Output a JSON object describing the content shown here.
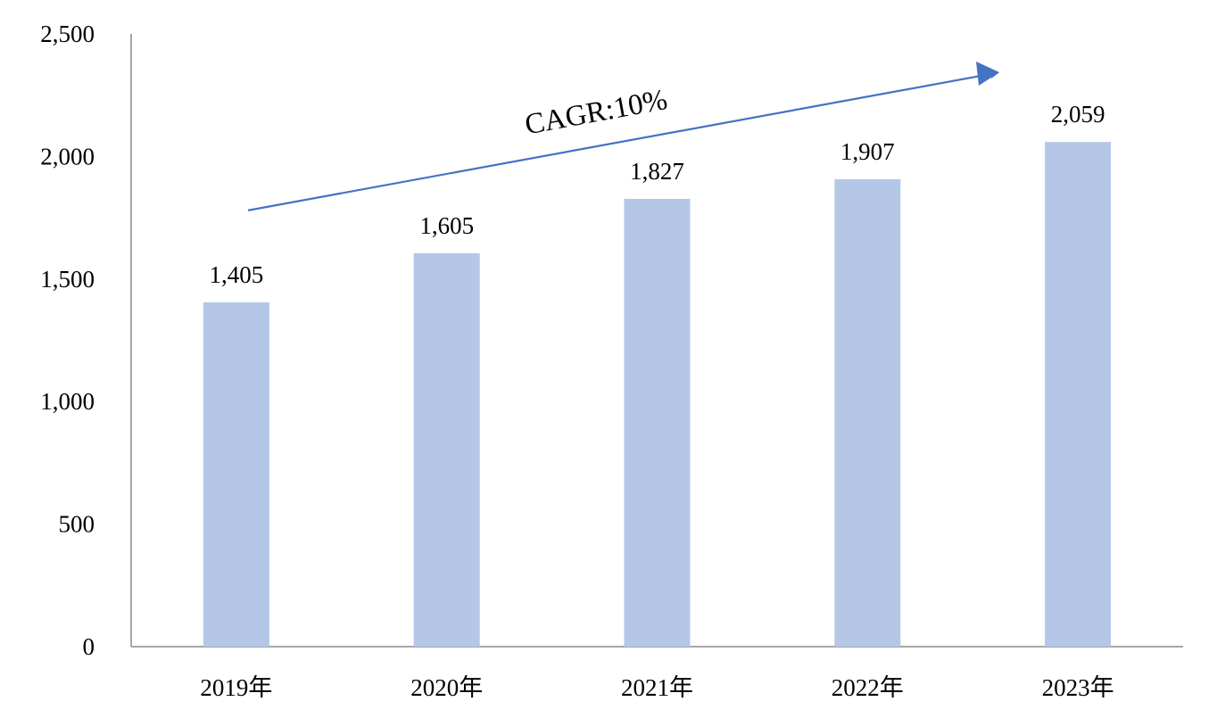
{
  "chart_data": {
    "type": "bar",
    "title": "",
    "xlabel": "",
    "ylabel": "",
    "categories": [
      "2019年",
      "2020年",
      "2021年",
      "2022年",
      "2023年"
    ],
    "series": [
      {
        "name": "",
        "values": [
          1405,
          1605,
          1827,
          1907,
          2059
        ]
      }
    ],
    "value_labels": [
      "1,405",
      "1,605",
      "1,827",
      "1,907",
      "2,059"
    ],
    "ylim": [
      0,
      2500
    ],
    "y_ticks": [
      0,
      500,
      1000,
      1500,
      2000,
      2500
    ],
    "y_tick_labels": [
      "0",
      "500",
      "1,000",
      "1,500",
      "2,000",
      "2,500"
    ],
    "grid": false,
    "legend": "none",
    "annotation": {
      "text": "CAGR:10%",
      "kind": "trend-arrow",
      "from_value": 1780,
      "to_value": 2340
    },
    "colors": {
      "bar": "#b4c7e7",
      "arrow": "#4472c4",
      "axis": "#a6a6a6",
      "text": "#000000"
    }
  }
}
